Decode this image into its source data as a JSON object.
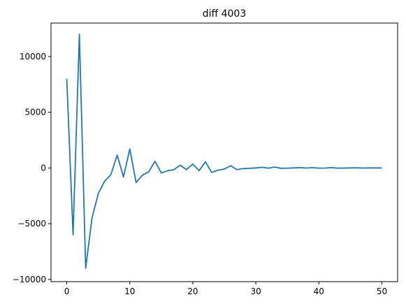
{
  "chart_data": {
    "type": "line",
    "title": "diff 4003",
    "xlabel": "",
    "ylabel": "",
    "xlim": [
      -2.5,
      52.5
    ],
    "ylim": [
      -10200,
      13000
    ],
    "xticks": [
      0,
      10,
      20,
      30,
      40,
      50
    ],
    "xtick_labels": [
      "0",
      "10",
      "20",
      "30",
      "40",
      "50"
    ],
    "yticks": [
      -10000,
      -5000,
      0,
      5000,
      10000
    ],
    "ytick_labels": [
      "−10000",
      "−5000",
      "0",
      "5000",
      "10000"
    ],
    "grid": false,
    "series": [
      {
        "color": "#1f77b4",
        "x": [
          0,
          1,
          2,
          3,
          4,
          5,
          6,
          7,
          8,
          9,
          10,
          11,
          12,
          13,
          14,
          15,
          16,
          17,
          18,
          19,
          20,
          21,
          22,
          23,
          24,
          25,
          26,
          27,
          28,
          29,
          30,
          31,
          32,
          33,
          34,
          35,
          36,
          37,
          38,
          39,
          40,
          41,
          42,
          43,
          44,
          45,
          46,
          47,
          48,
          49,
          50
        ],
        "values": [
          8000,
          -6000,
          12000,
          -9000,
          -4500,
          -2300,
          -1200,
          -600,
          1150,
          -800,
          1700,
          -1300,
          -650,
          -350,
          600,
          -450,
          -250,
          -150,
          250,
          -150,
          350,
          -250,
          550,
          -400,
          -200,
          -100,
          200,
          -150,
          -50,
          -30,
          0,
          60,
          -20,
          80,
          -30,
          -20,
          0,
          30,
          -10,
          30,
          -20,
          -10,
          30,
          -20,
          -10,
          0,
          10,
          -10,
          0,
          0,
          0
        ]
      }
    ]
  }
}
